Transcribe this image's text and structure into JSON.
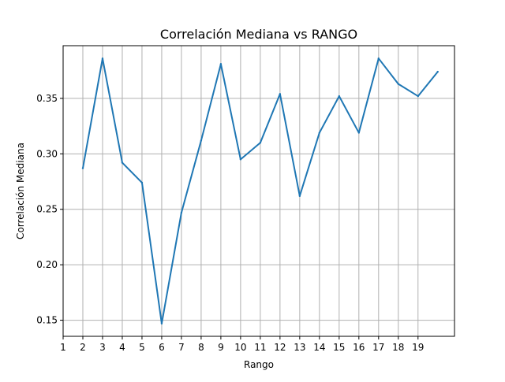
{
  "chart_data": {
    "type": "line",
    "title": "Correlación Mediana vs RANGO",
    "xlabel": "Rango",
    "ylabel": "Correlación Mediana",
    "x_ticks": [
      "1",
      "2",
      "3",
      "4",
      "5",
      "6",
      "7",
      "8",
      "9",
      "10",
      "11",
      "12",
      "13",
      "14",
      "15",
      "16",
      "17",
      "18",
      "19"
    ],
    "y_ticks": [
      "0.15",
      "0.20",
      "0.25",
      "0.30",
      "0.35"
    ],
    "xlim": [
      1,
      20.85
    ],
    "ylim": [
      0.1355,
      0.3975
    ],
    "grid": true,
    "series": [
      {
        "x": [
          2,
          3,
          4,
          5,
          6,
          7,
          8,
          9,
          10,
          11,
          12,
          13,
          14,
          15,
          16,
          17,
          18,
          19,
          20
        ],
        "values": [
          0.287,
          0.386,
          0.292,
          0.274,
          0.147,
          0.247,
          0.312,
          0.381,
          0.295,
          0.31,
          0.354,
          0.262,
          0.319,
          0.352,
          0.319,
          0.386,
          0.363,
          0.352,
          0.374
        ]
      }
    ],
    "colors": {
      "line": "#1f77b4",
      "grid": "#b0b0b0",
      "axis": "#000000"
    }
  }
}
